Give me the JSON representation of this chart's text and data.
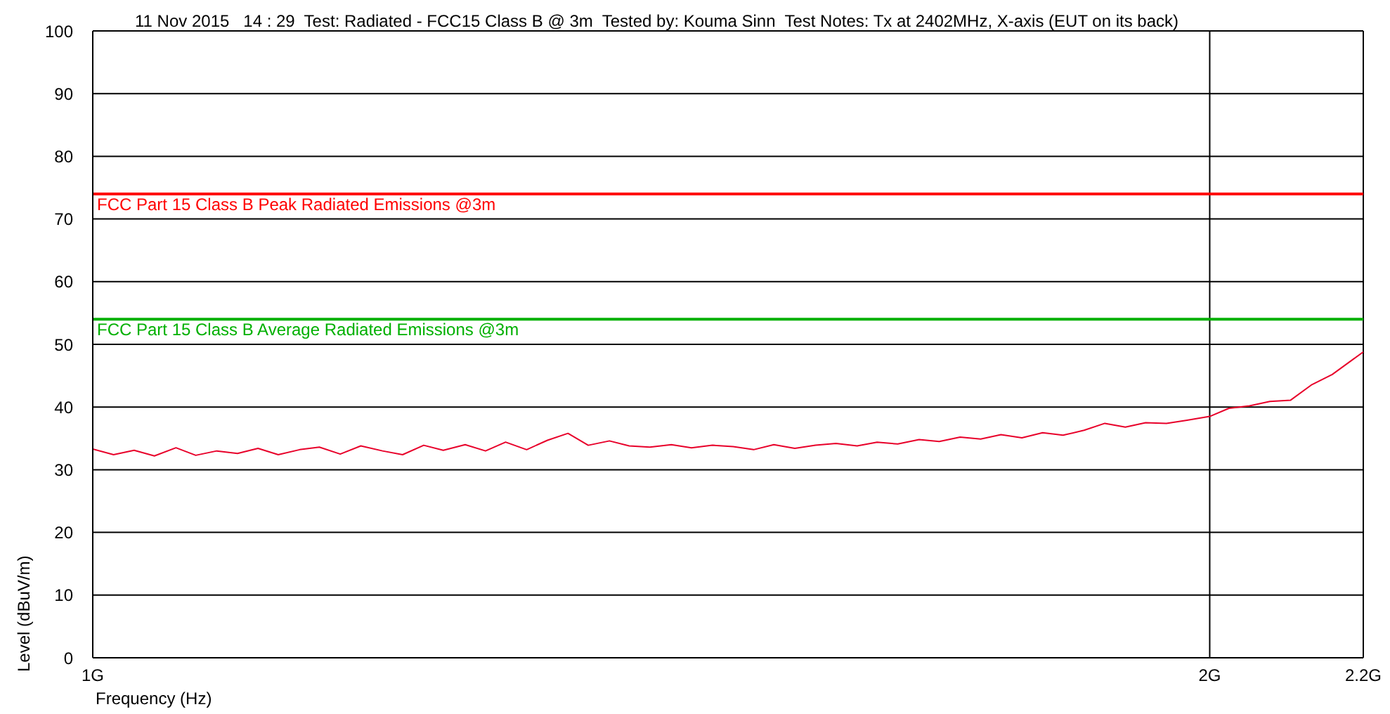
{
  "chart_data": {
    "type": "line",
    "title": "11 Nov 2015   14 : 29  Test: Radiated - FCC15 Class B @ 3m  Tested by: Kouma Sinn  Test Notes: Tx at 2402MHz, X-axis (EUT on its back)",
    "xlabel": "Frequency (Hz)",
    "ylabel": "Level (dBuV/m)",
    "log": "x",
    "grid": true,
    "legend": false,
    "marker": "none",
    "line_style": "solid",
    "xlim": [
      1,
      2.2
    ],
    "xticks": [
      {
        "value": 1,
        "label": "1G"
      },
      {
        "value": 2,
        "label": "2G"
      },
      {
        "value": 2.2,
        "label": "2.2G"
      }
    ],
    "ylim": [
      0,
      100
    ],
    "yticks": [
      0,
      10,
      20,
      30,
      40,
      50,
      60,
      70,
      80,
      90,
      100
    ],
    "x": [
      1.0,
      1.013,
      1.026,
      1.039,
      1.053,
      1.066,
      1.08,
      1.094,
      1.108,
      1.122,
      1.137,
      1.151,
      1.166,
      1.181,
      1.197,
      1.212,
      1.228,
      1.243,
      1.26,
      1.276,
      1.292,
      1.309,
      1.326,
      1.343,
      1.36,
      1.378,
      1.395,
      1.413,
      1.432,
      1.45,
      1.469,
      1.488,
      1.507,
      1.526,
      1.546,
      1.566,
      1.586,
      1.607,
      1.627,
      1.648,
      1.67,
      1.691,
      1.713,
      1.735,
      1.757,
      1.78,
      1.803,
      1.826,
      1.85,
      1.874,
      1.898,
      1.922,
      1.947,
      1.972,
      2.0,
      2.024,
      2.05,
      2.076,
      2.103,
      2.13,
      2.158,
      2.186,
      2.2
    ],
    "series": [
      {
        "color": "#e8002a",
        "values": [
          33.3,
          32.4,
          33.1,
          32.2,
          33.5,
          32.3,
          33.0,
          32.6,
          33.4,
          32.4,
          33.2,
          33.6,
          32.5,
          33.8,
          33.0,
          32.4,
          33.9,
          33.1,
          34.0,
          33.0,
          34.4,
          33.2,
          34.7,
          35.8,
          33.9,
          34.6,
          33.8,
          33.6,
          34.0,
          33.5,
          33.9,
          33.7,
          33.2,
          34.0,
          33.4,
          33.9,
          34.2,
          33.8,
          34.4,
          34.1,
          34.8,
          34.5,
          35.2,
          34.9,
          35.6,
          35.1,
          35.9,
          35.5,
          36.3,
          37.4,
          36.8,
          37.5,
          37.4,
          37.9,
          38.5,
          39.8,
          40.2,
          40.9,
          41.1,
          43.5,
          45.2,
          47.6,
          48.8
        ]
      }
    ],
    "ref_lines": [
      {
        "axis": "y",
        "value": 74,
        "label": "FCC Part 15 Class B Peak Radiated Emissions @3m",
        "color": "#ff0000"
      },
      {
        "axis": "y",
        "value": 54,
        "label": "FCC Part 15 Class B Average Radiated Emissions @3m",
        "color": "#00b000"
      }
    ]
  }
}
